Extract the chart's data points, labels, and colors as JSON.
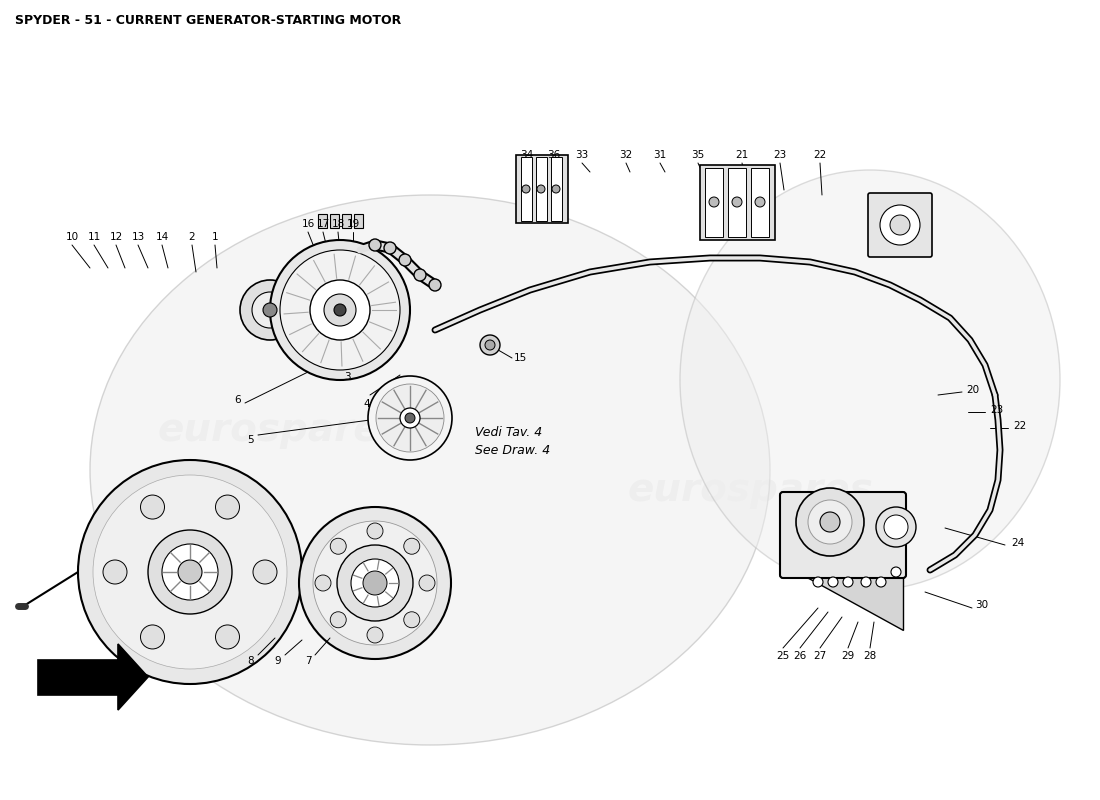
{
  "title": "SPYDER - 51 - CURRENT GENERATOR-STARTING MOTOR",
  "bg_color": "#ffffff",
  "watermark_text": "eurospares",
  "watermark_color": "#cccccc",
  "annotation_italian": "Vedi Tav. 4",
  "annotation_english": "See Draw. 4"
}
